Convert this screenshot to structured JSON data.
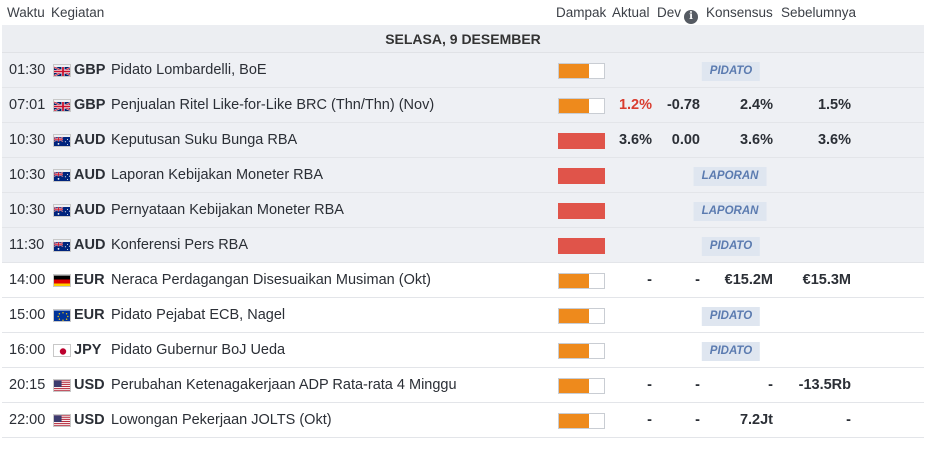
{
  "header": {
    "waktu": "Waktu",
    "kegiatan": "Kegiatan",
    "dampak": "Dampak",
    "aktual": "Aktual",
    "dev": "Dev",
    "konsensus": "Konsensus",
    "sebelumnya": "Sebelumnya",
    "info_icon": "i"
  },
  "date_label": "SELASA, 9 DESEMBER",
  "colors": {
    "impact_medium": "#ee8a1c",
    "impact_high": "#e0544a",
    "tag_bg": "#dfe6f0",
    "tag_text": "#5b7bb0",
    "negative_actual": "#d93c2f"
  },
  "events": [
    {
      "time": "01:30",
      "flag": "uk-flag",
      "currency": "GBP",
      "title": "Pidato Lombardelli, BoE",
      "impact": "medium",
      "tag": "PIDATO"
    },
    {
      "time": "07:01",
      "flag": "uk-flag",
      "currency": "GBP",
      "title": "Penjualan Ritel Like-for-Like BRC (Thn/Thn) (Nov)",
      "impact": "medium",
      "actual": "1.2%",
      "dev": "-0.78",
      "consensus": "2.4%",
      "previous": "1.5%"
    },
    {
      "time": "10:30",
      "flag": "australia-flag",
      "currency": "AUD",
      "title": "Keputusan Suku Bunga RBA",
      "impact": "high",
      "actual": "3.6%",
      "dev": "0.00",
      "consensus": "3.6%",
      "previous": "3.6%"
    },
    {
      "time": "10:30",
      "flag": "australia-flag",
      "currency": "AUD",
      "title": "Laporan Kebijakan Moneter RBA",
      "impact": "high",
      "tag": "LAPORAN"
    },
    {
      "time": "10:30",
      "flag": "australia-flag",
      "currency": "AUD",
      "title": "Pernyataan Kebijakan Moneter RBA",
      "impact": "high",
      "tag": "LAPORAN"
    },
    {
      "time": "11:30",
      "flag": "australia-flag",
      "currency": "AUD",
      "title": "Konferensi Pers RBA",
      "impact": "high",
      "tag": "PIDATO"
    },
    {
      "time": "14:00",
      "flag": "germany-flag",
      "currency": "EUR",
      "title": "Neraca Perdagangan Disesuaikan Musiman (Okt)",
      "impact": "medium",
      "actual": "-",
      "dev": "-",
      "consensus": "€15.2M",
      "previous": "€15.3M"
    },
    {
      "time": "15:00",
      "flag": "eu-flag",
      "currency": "EUR",
      "title": "Pidato Pejabat ECB, Nagel",
      "impact": "medium",
      "tag": "PIDATO"
    },
    {
      "time": "16:00",
      "flag": "japan-flag",
      "currency": "JPY",
      "title": "Pidato Gubernur BoJ Ueda",
      "impact": "medium",
      "tag": "PIDATO"
    },
    {
      "time": "20:15",
      "flag": "usa-flag",
      "currency": "USD",
      "title": "Perubahan Ketenagakerjaan ADP Rata-rata 4 Minggu",
      "impact": "medium",
      "actual": "-",
      "dev": "-",
      "consensus": "-",
      "previous": "-13.5Rb"
    },
    {
      "time": "22:00",
      "flag": "usa-flag",
      "currency": "USD",
      "title": "Lowongan Pekerjaan JOLTS (Okt)",
      "impact": "medium",
      "actual": "-",
      "dev": "-",
      "consensus": "7.2Jt",
      "previous": "-"
    }
  ]
}
